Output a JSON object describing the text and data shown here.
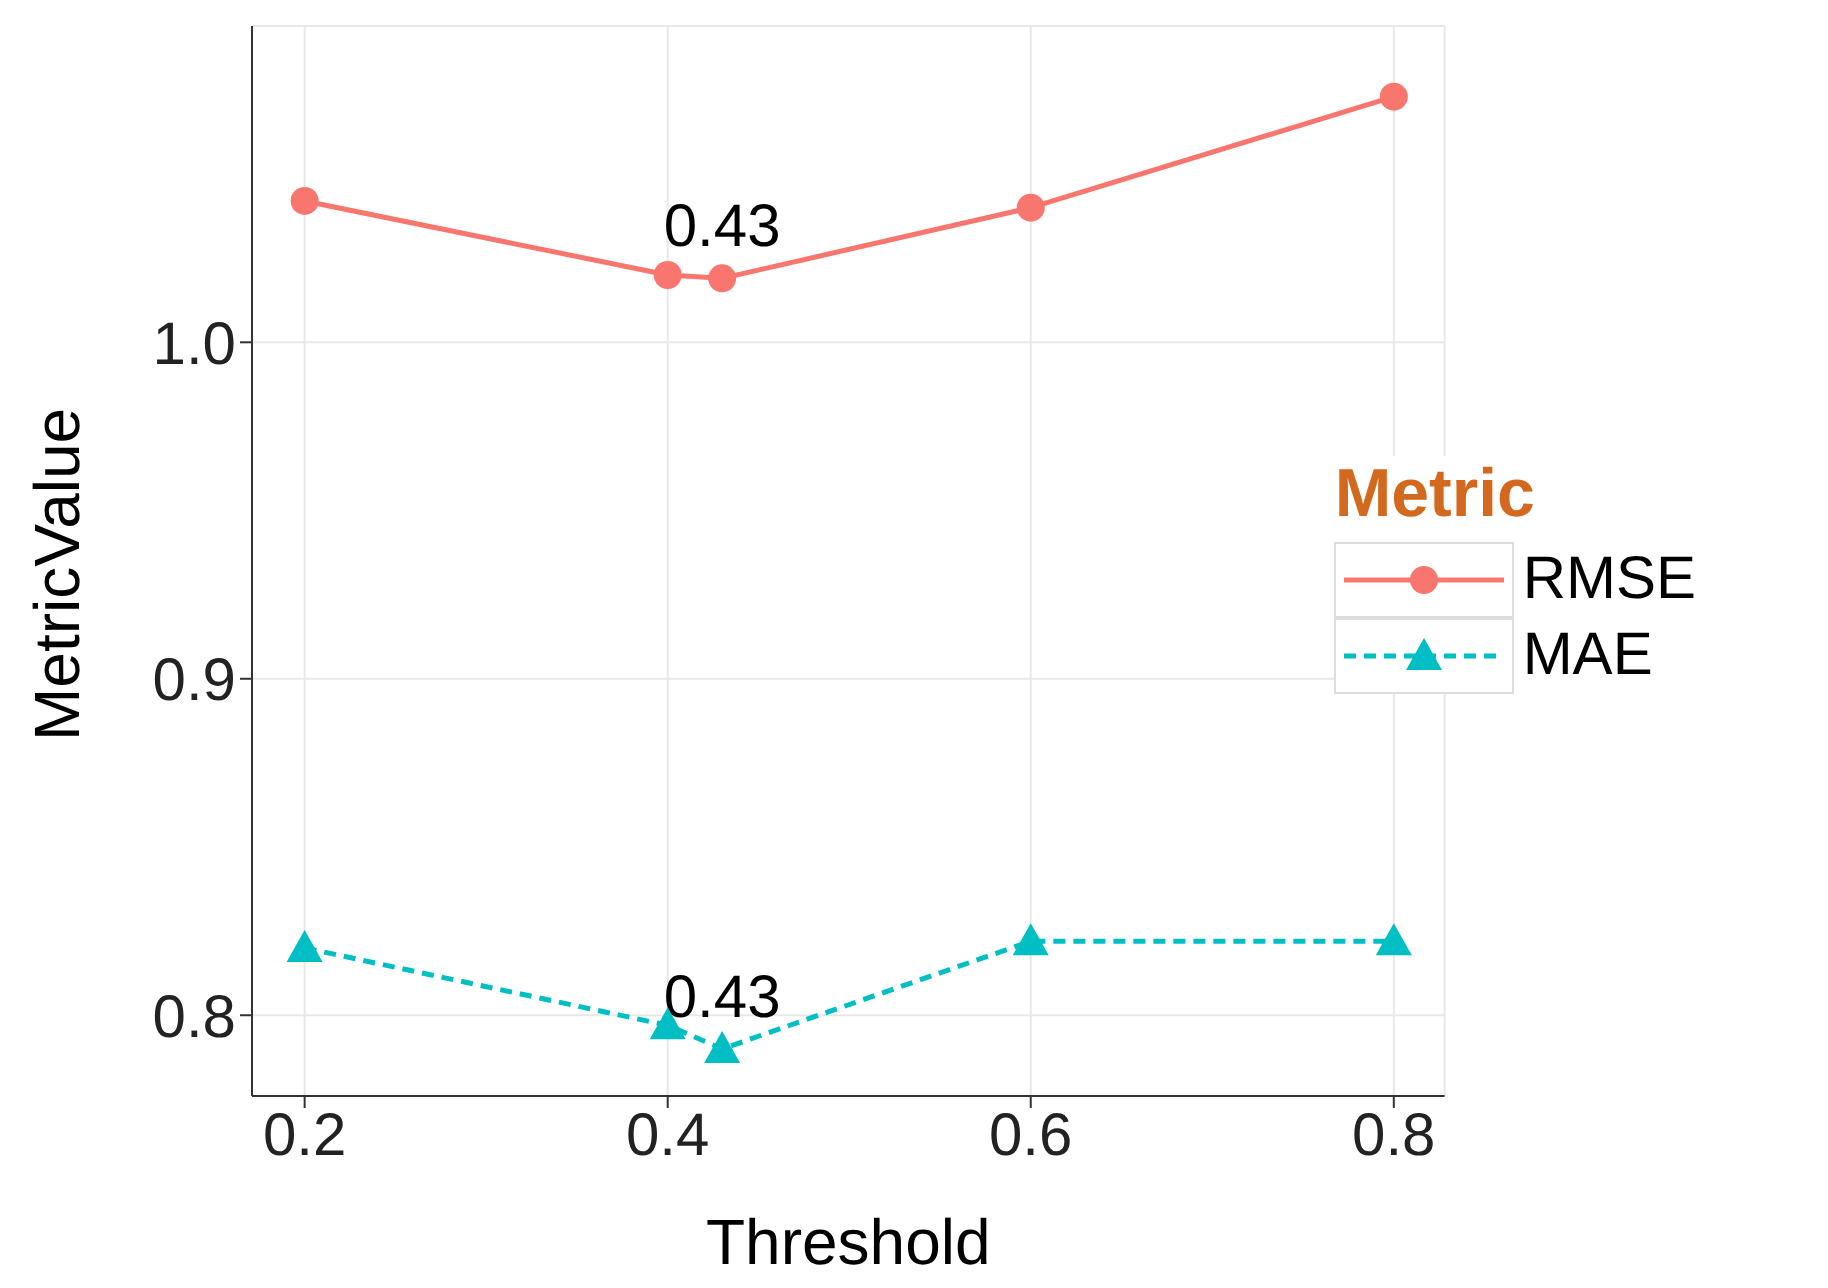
{
  "chart_data": {
    "type": "line",
    "xlabel": "Threshold",
    "ylabel": "MetricValue",
    "legend_title": "Metric",
    "x": [
      0.2,
      0.4,
      0.43,
      0.6,
      0.8
    ],
    "series": [
      {
        "name": "RMSE",
        "color": "#f8766d",
        "values": [
          1.042,
          1.02,
          1.019,
          1.04,
          1.073
        ],
        "marker": "circle",
        "line_style": "solid"
      },
      {
        "name": "MAE",
        "color": "#00bfc4",
        "values": [
          0.82,
          0.797,
          0.79,
          0.822,
          0.822
        ],
        "marker": "triangle",
        "line_style": "dashed"
      }
    ],
    "annotations": [
      {
        "text": "0.43",
        "x": 0.43,
        "y": 1.019
      },
      {
        "text": "0.43",
        "x": 0.43,
        "y": 0.79
      }
    ],
    "xlim": [
      0.171,
      0.828
    ],
    "xticks": [
      0.2,
      0.4,
      0.6,
      0.8
    ],
    "ylim": [
      0.776,
      1.094
    ],
    "yticks": [
      0.8,
      0.9,
      {
        "value": 1,
        "label": "1.0"
      }
    ],
    "grid": true,
    "legend": "right"
  }
}
